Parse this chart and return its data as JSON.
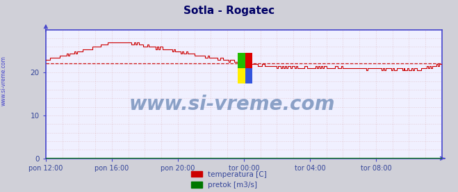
{
  "title": "Sotla - Rogatec",
  "title_color": "#000066",
  "bg_color": "#d0d0d8",
  "plot_bg_color": "#f0f0ff",
  "grid_color": "#c8a0a0",
  "axis_color": "#4444cc",
  "watermark_text": "www.si-vreme.com",
  "watermark_color": "#5577aa",
  "sidebar_text": "www.si-vreme.com",
  "sidebar_color": "#4444cc",
  "xlim": [
    0,
    288
  ],
  "ylim": [
    0,
    30
  ],
  "yticks": [
    0,
    10,
    20
  ],
  "xtick_labels": [
    "pon 12:00",
    "pon 16:00",
    "pon 20:00",
    "tor 00:00",
    "tor 04:00",
    "tor 08:00"
  ],
  "xtick_positions": [
    0,
    48,
    96,
    144,
    192,
    240
  ],
  "avg_line_value": 22.2,
  "avg_line_color": "#cc0000",
  "temp_color": "#cc0000",
  "pretok_color": "#007700",
  "legend_temp_label": "temperatura [C]",
  "legend_pretok_label": "pretok [m3/s]",
  "font_family": "DejaVu Sans",
  "logo_colors": [
    "#FFEE00",
    "#3355DD",
    "#22BB00",
    "#DD0000"
  ],
  "tick_label_color": "#334499"
}
